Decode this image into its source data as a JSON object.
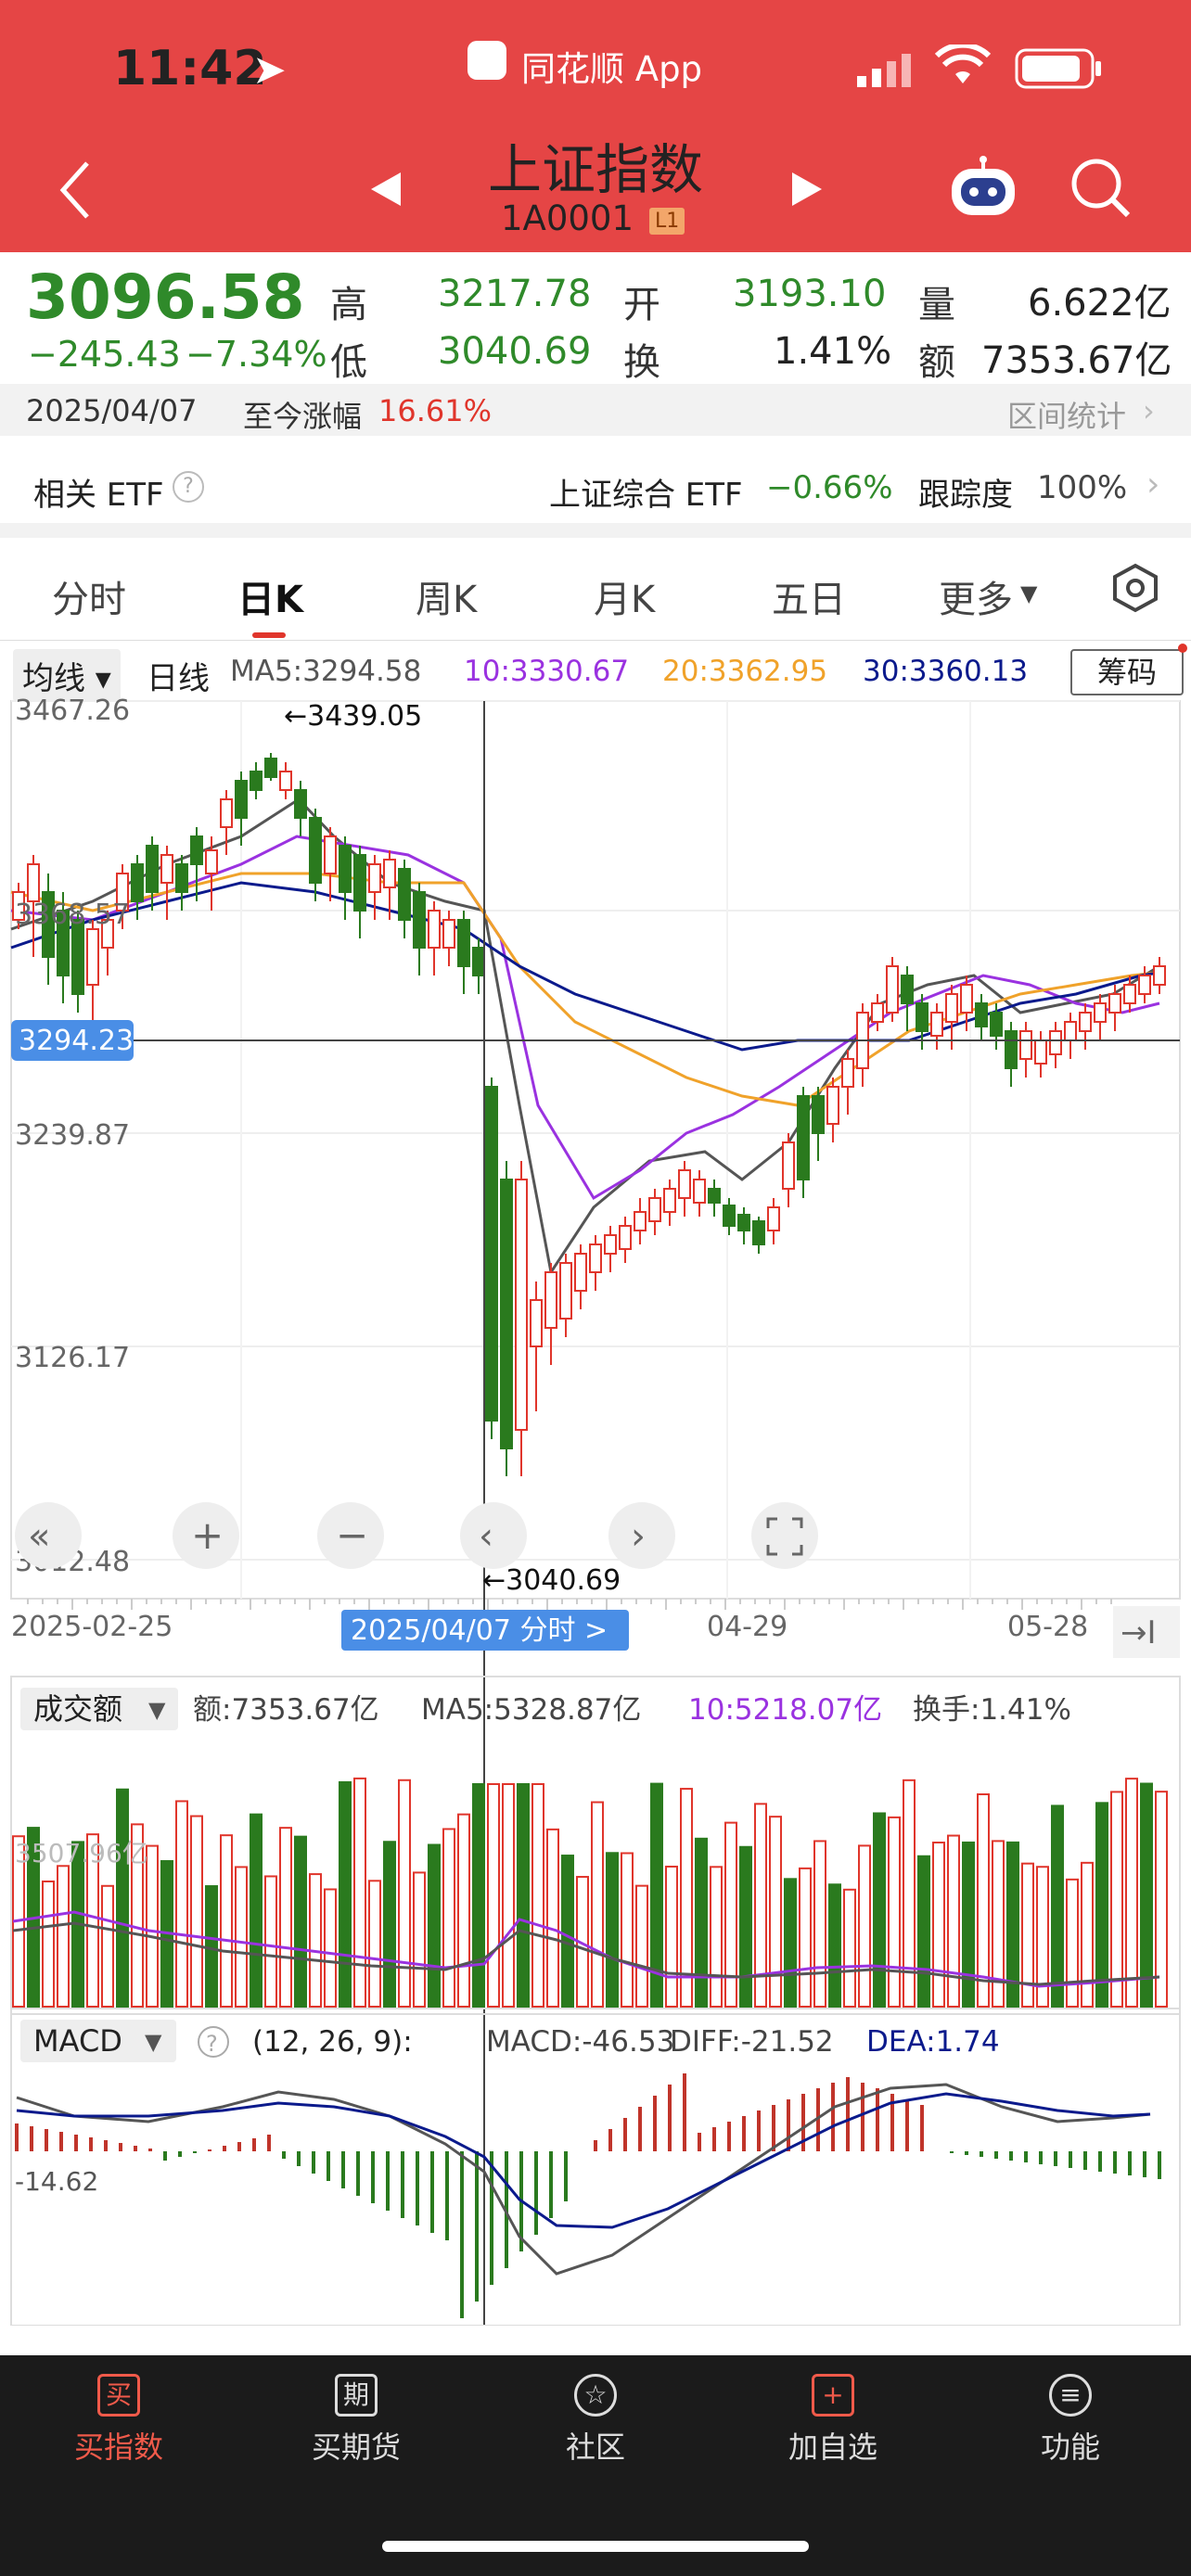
{
  "status": {
    "time": "11:42"
  },
  "header": {
    "app_name": "同花顺 App",
    "title": "上证指数",
    "code": "1A0001",
    "badge": "L1"
  },
  "quote": {
    "price": "3096.58",
    "change": "−245.43",
    "change_pct": "−7.34%",
    "high_label": "高",
    "high": "3217.78",
    "low_label": "低",
    "low": "3040.69",
    "open_label": "开",
    "open": "3193.10",
    "turn_label": "换",
    "turn": "1.41%",
    "vol_label": "量",
    "vol": "6.622亿",
    "amt_label": "额",
    "amt": "7353.67亿"
  },
  "date_bar": {
    "date": "2025/04/07",
    "since_label": "至今涨幅",
    "since_value": "16.61%",
    "stats_label": "区间统计"
  },
  "etf_bar": {
    "label": "相关 ETF",
    "etf_name": "上证综合 ETF",
    "etf_change": "−0.66%",
    "track_label": "跟踪度",
    "track_value": "100%"
  },
  "tabs": [
    "分时",
    "日K",
    "周K",
    "月K",
    "五日",
    "更多"
  ],
  "active_tab": "日K",
  "ma_bar": {
    "selector": "均线",
    "period": "日线",
    "ma5": "MA5:3294.58",
    "ma10": "10:3330.67",
    "ma20": "20:3362.95",
    "ma30": "30:3360.13",
    "chip_button": "筹码"
  },
  "kline": {
    "y_labels": [
      "3467.26",
      "3368.57",
      "3239.87",
      "3126.17",
      "3012.48"
    ],
    "crosshair_price": "3294.23",
    "max_label": "←3439.05",
    "min_label": "←3040.69",
    "x_labels": [
      "2025-02-25",
      "04-29",
      "05-28"
    ],
    "cursor_date": "2025/04/07 分时 >"
  },
  "volume_bar": {
    "selector": "成交额",
    "amt": "额:7353.67亿",
    "ma5": "MA5:5328.87亿",
    "ma10": "10:5218.07亿",
    "turnover": "换手:1.41%",
    "y_label": "3507.96亿"
  },
  "macd_bar": {
    "selector": "MACD",
    "params": "(12, 26, 9):",
    "macd": "MACD:-46.53",
    "diff": "DIFF:-21.52",
    "dea": "DEA:1.74",
    "y_label": "-14.62"
  },
  "nav": [
    "买指数",
    "买期货",
    "社区",
    "加自选",
    "功能"
  ],
  "nav_icons": [
    "买",
    "期",
    "☆",
    "+",
    "≡"
  ],
  "colors": {
    "header": "#e54545",
    "up": "#e0352b",
    "down": "#2f8a2a",
    "ma5": "#555555",
    "ma10": "#9a32e0",
    "ma20": "#f0a22a",
    "ma30": "#0b1a8c"
  }
}
